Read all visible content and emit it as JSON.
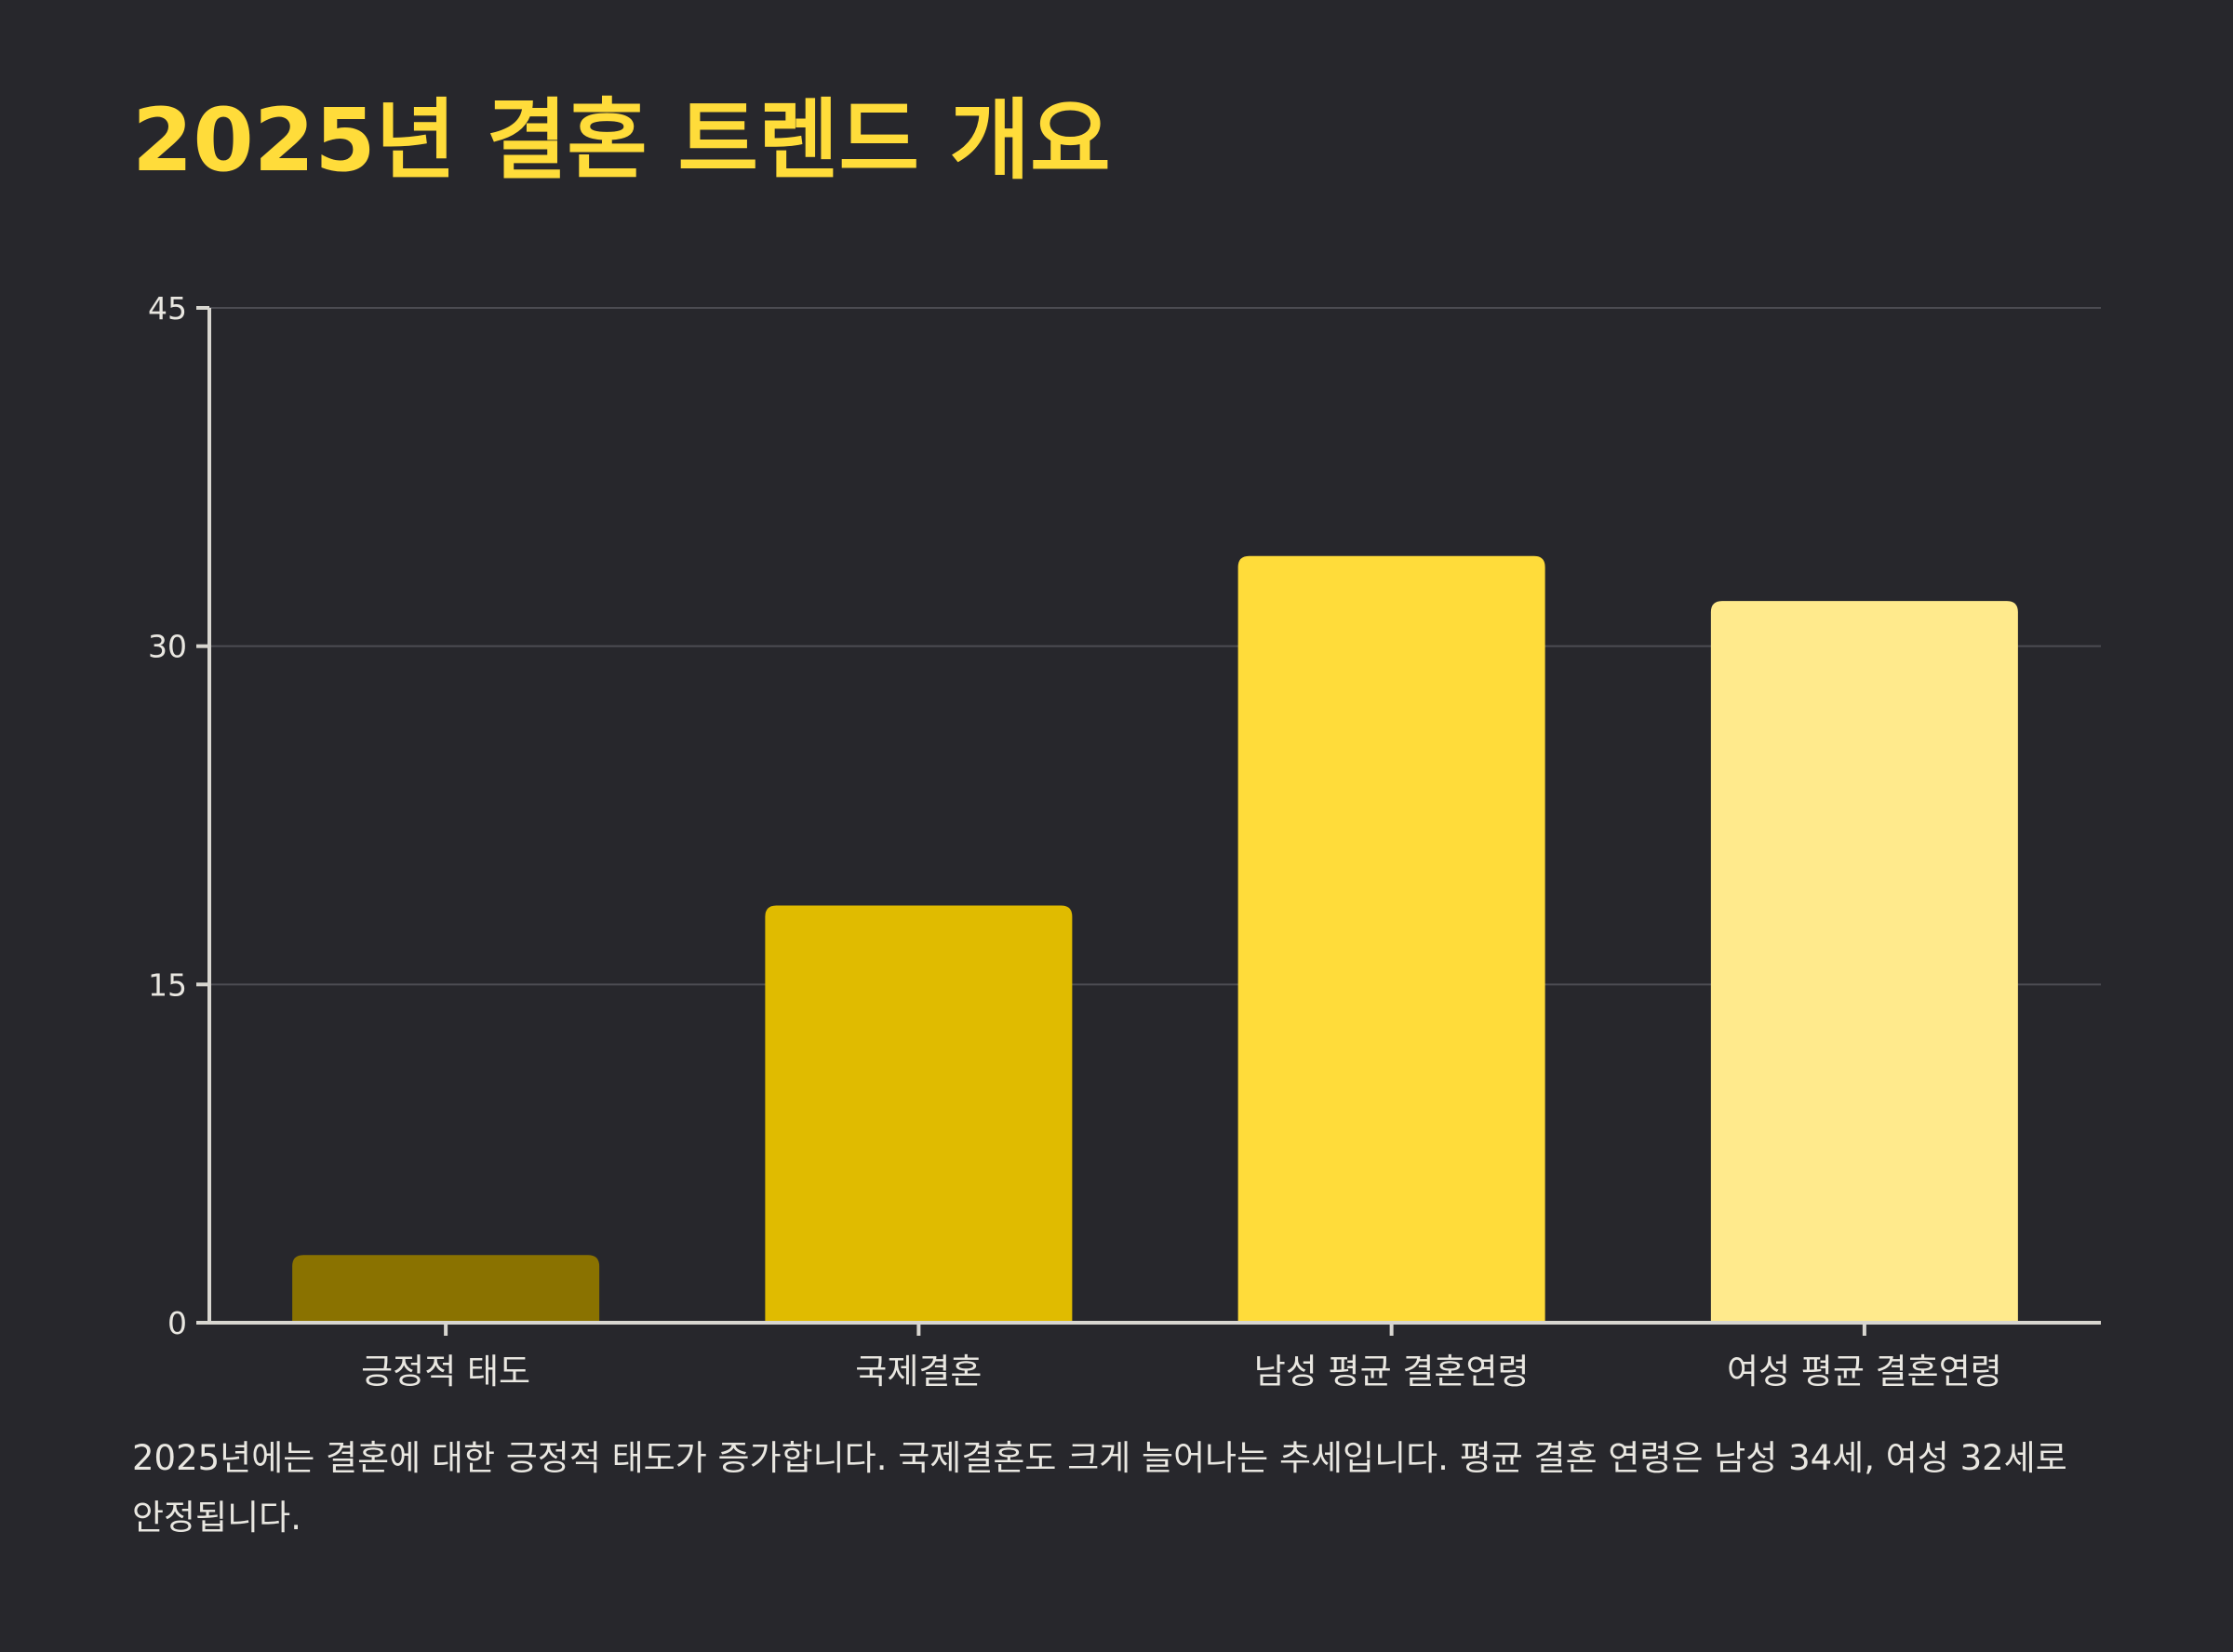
{
  "chart_data": {
    "type": "bar",
    "title": "2025년 결혼 트렌드 개요",
    "categories": [
      "긍정적 태도",
      "국제결혼",
      "남성 평균 결혼연령",
      "여성 평균 결혼연령"
    ],
    "values": [
      3,
      18.5,
      34,
      32
    ],
    "colors": [
      "#8a7200",
      "#e0bb00",
      "#ffdc3a",
      "#ffea8c"
    ],
    "ylim": [
      0,
      45
    ],
    "yticks": [
      0,
      15,
      30,
      45
    ],
    "xlabel": "",
    "ylabel": "",
    "grid": true,
    "accent_color": "#ffdc3a",
    "background_color": "#27272c"
  },
  "description": "2025년에는 결혼에 대한 긍정적 태도가 증가합니다. 국제결혼도 크게 늘어나는 추세입니다. 평균 결혼 연령은 남성 34세, 여성 32세로 안정됩니다."
}
